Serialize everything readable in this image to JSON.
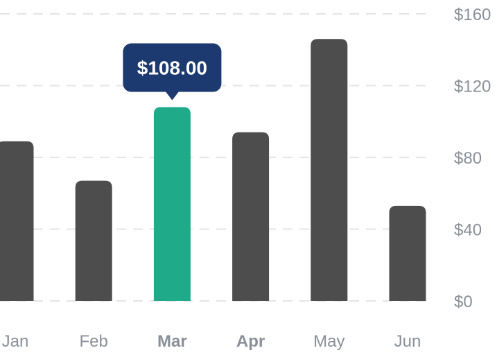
{
  "chart_data": {
    "type": "bar",
    "categories": [
      "Jan",
      "Feb",
      "Mar",
      "Apr",
      "May",
      "Jun"
    ],
    "values": [
      89,
      67,
      108,
      94,
      146,
      53
    ],
    "ylim": [
      0,
      160
    ],
    "yticks": [
      "$0",
      "$40",
      "$80",
      "$120",
      "$160"
    ],
    "ytick_values": [
      0,
      40,
      80,
      120,
      160
    ],
    "grid": true,
    "highlight_index": 2,
    "hover_label": 3,
    "tooltip": "$108.00",
    "colors": {
      "bar": "#4d4d4d",
      "highlight": "#1fab89",
      "tooltip_bg": "#1c3a70",
      "grid": "#e3e4e6",
      "axis_text": "#8a8f98",
      "hover_text": "#5b606a"
    }
  }
}
